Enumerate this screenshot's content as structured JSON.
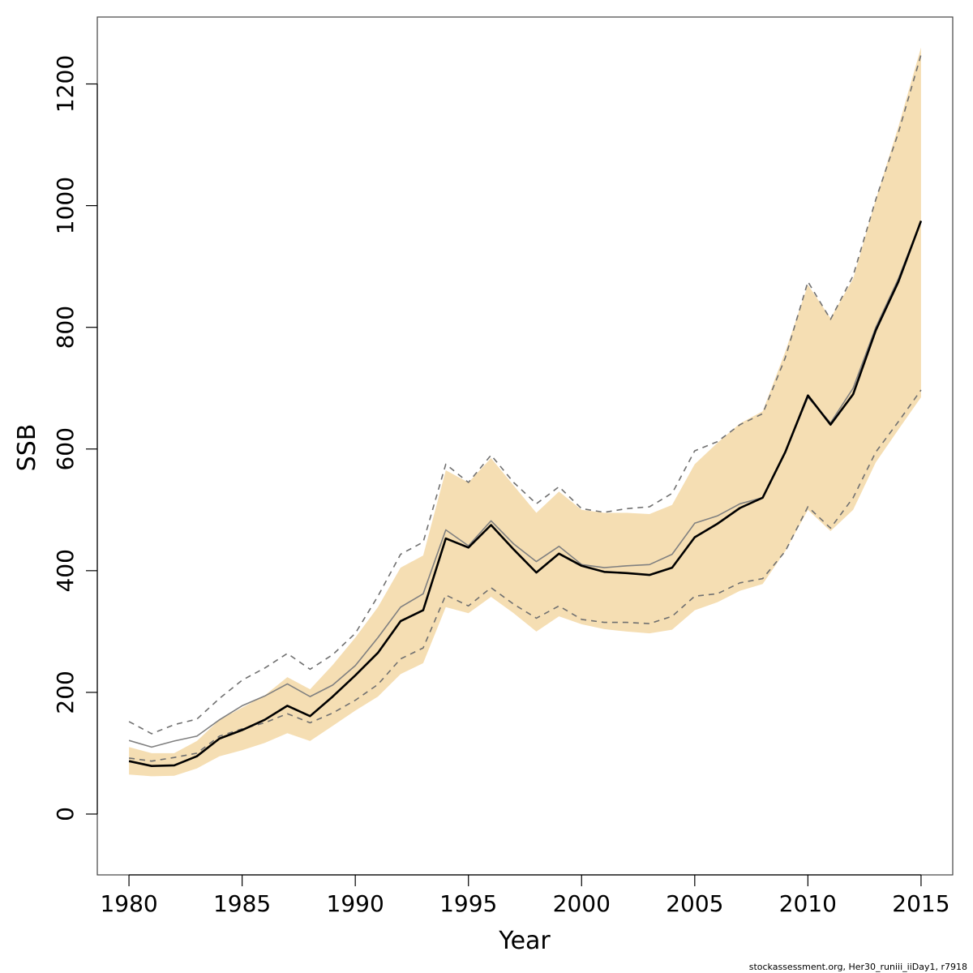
{
  "chart_data": {
    "type": "line",
    "xlabel": "Year",
    "ylabel": "SSB",
    "xlim": [
      1978.6,
      2016.4
    ],
    "ylim": [
      -100,
      1310
    ],
    "x_ticks": [
      1980,
      1985,
      1990,
      1995,
      2000,
      2005,
      2010,
      2015
    ],
    "y_ticks": [
      0,
      200,
      400,
      600,
      800,
      1000,
      1200
    ],
    "grid": false,
    "legend": "none",
    "footer_text": "stockassessment.org, Her30_runiii_iiDay1, r7918",
    "years": [
      1980,
      1981,
      1982,
      1983,
      1984,
      1985,
      1986,
      1987,
      1988,
      1989,
      1990,
      1991,
      1992,
      1993,
      1994,
      1995,
      1996,
      1997,
      1998,
      1999,
      2000,
      2001,
      2002,
      2003,
      2004,
      2005,
      2006,
      2007,
      2008,
      2009,
      2010,
      2011,
      2012,
      2013,
      2014,
      2015
    ],
    "band": {
      "name": "confidence interval",
      "upper": [
        110,
        100,
        100,
        120,
        155,
        175,
        195,
        225,
        205,
        245,
        290,
        340,
        405,
        425,
        565,
        545,
        585,
        540,
        495,
        530,
        500,
        495,
        495,
        493,
        508,
        575,
        610,
        642,
        662,
        760,
        870,
        815,
        880,
        1010,
        1130,
        1260
      ],
      "lower": [
        65,
        62,
        63,
        75,
        95,
        105,
        117,
        133,
        120,
        145,
        170,
        193,
        230,
        248,
        340,
        330,
        357,
        330,
        300,
        325,
        312,
        304,
        300,
        297,
        303,
        335,
        348,
        367,
        378,
        432,
        500,
        465,
        500,
        578,
        632,
        685
      ]
    },
    "series": [
      {
        "role": "estimate",
        "values": [
          87,
          79,
          80,
          95,
          124,
          138,
          155,
          178,
          161,
          193,
          228,
          265,
          317,
          335,
          453,
          438,
          475,
          435,
          397,
          428,
          408,
          398,
          396,
          393,
          405,
          455,
          477,
          503,
          520,
          595,
          688,
          640,
          690,
          795,
          875,
          975
        ]
      },
      {
        "role": "comparison",
        "values": [
          121,
          110,
          120,
          128,
          155,
          178,
          194,
          214,
          193,
          212,
          244,
          290,
          340,
          362,
          467,
          441,
          482,
          444,
          415,
          440,
          410,
          405,
          408,
          410,
          427,
          478,
          490,
          510,
          520,
          595,
          685,
          643,
          700,
          800,
          880,
          975
        ]
      },
      {
        "role": "comparison-upper",
        "values": [
          152,
          132,
          147,
          156,
          190,
          220,
          240,
          264,
          238,
          262,
          297,
          358,
          427,
          447,
          575,
          545,
          590,
          545,
          510,
          538,
          502,
          496,
          502,
          505,
          527,
          597,
          612,
          640,
          658,
          750,
          875,
          813,
          885,
          1010,
          1120,
          1248
        ]
      },
      {
        "role": "comparison-lower",
        "values": [
          92,
          87,
          93,
          100,
          128,
          140,
          150,
          165,
          150,
          166,
          187,
          213,
          255,
          273,
          360,
          342,
          372,
          345,
          322,
          342,
          320,
          315,
          315,
          313,
          325,
          358,
          362,
          380,
          387,
          432,
          505,
          470,
          520,
          595,
          645,
          697
        ]
      }
    ],
    "colors": {
      "band": "#f5deb3",
      "estimate": "#000000",
      "comparison": "#808080",
      "frame": "#444444"
    }
  }
}
